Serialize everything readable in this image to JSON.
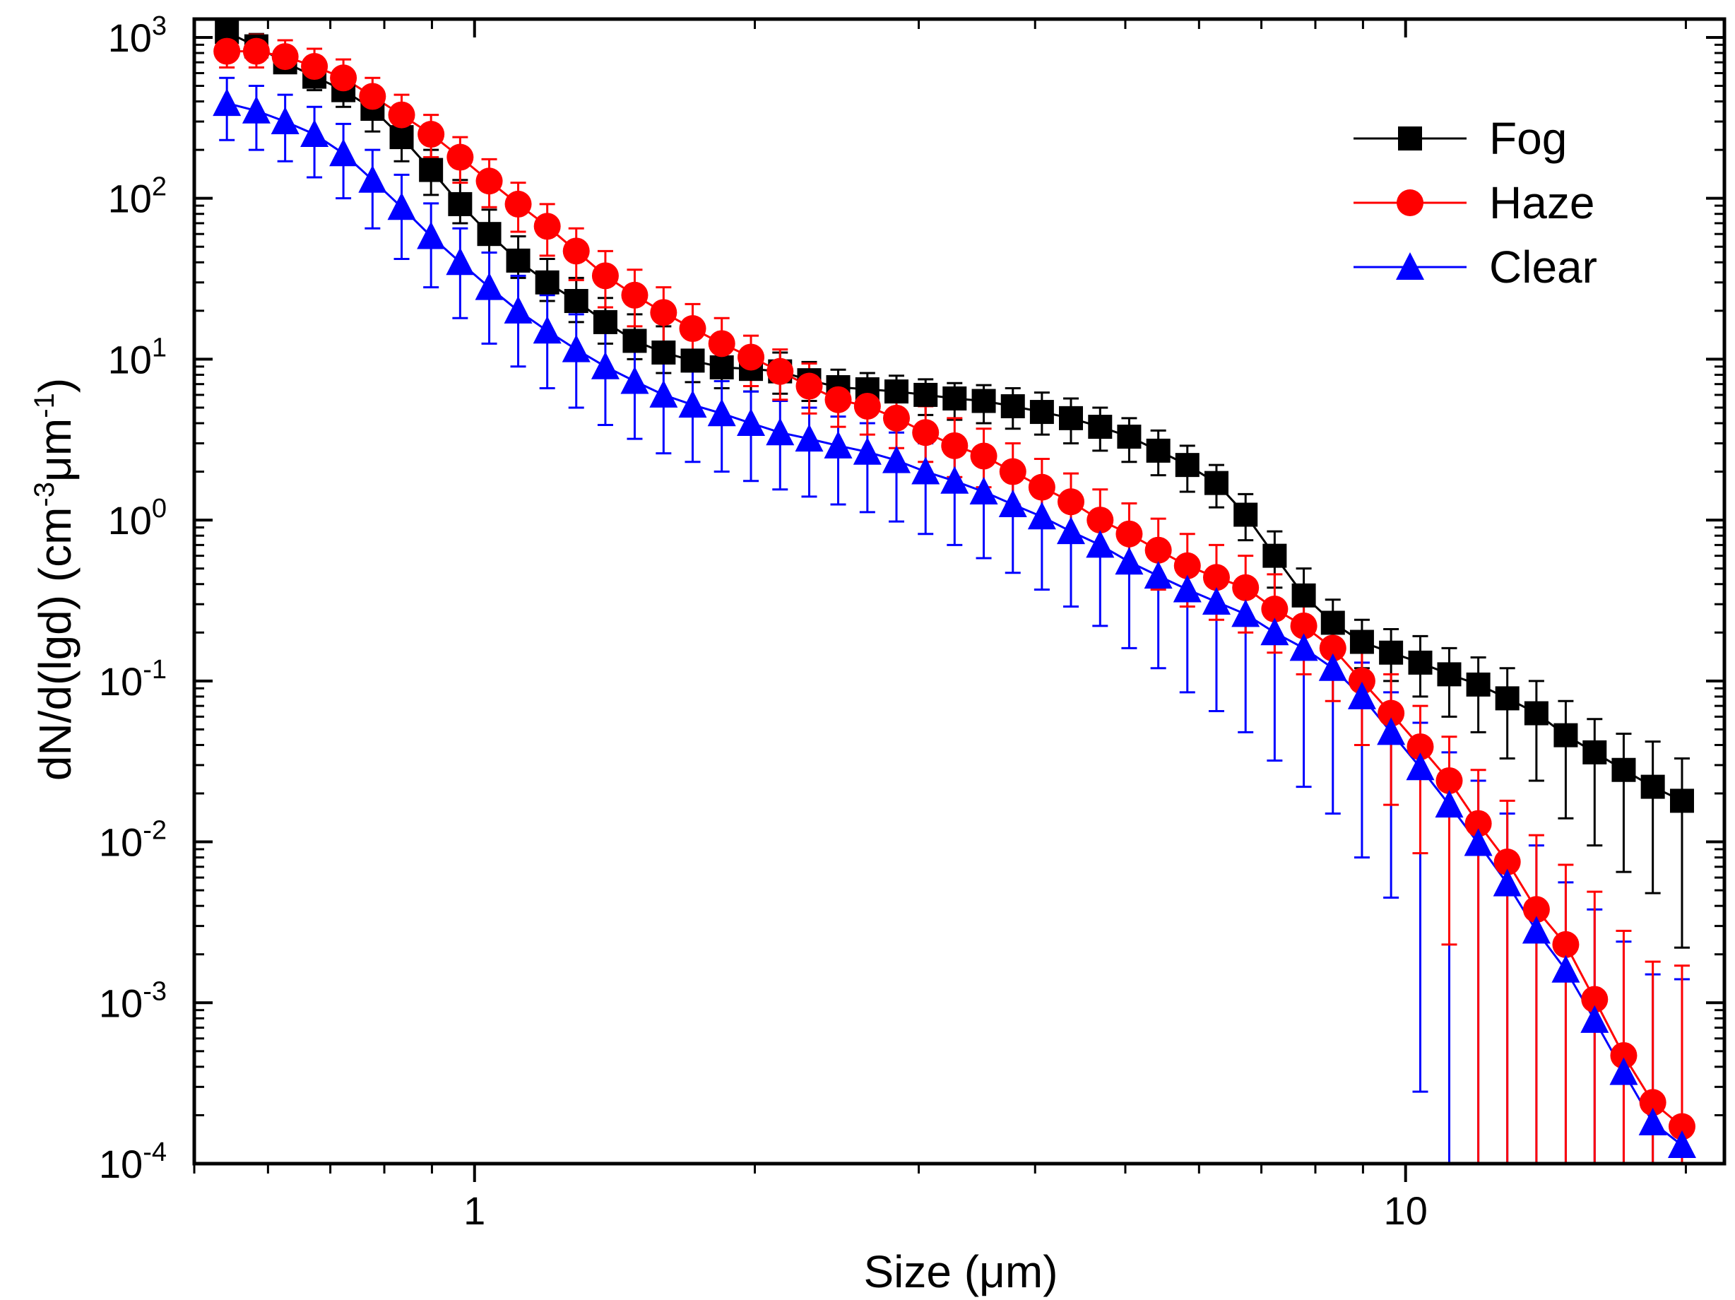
{
  "chart_data": {
    "type": "scatter",
    "title": "",
    "xlabel": "Size (μm)",
    "ylabel": {
      "main": "dN/d(lgd) (cm",
      "sup1": "-3",
      "mid": "μm",
      "sup2": "-1",
      "end": ")"
    },
    "x_scale": "log",
    "y_scale": "log",
    "xlim": [
      0.5,
      22
    ],
    "ylim": [
      0.0001,
      1300
    ],
    "x_tick_labels": [
      {
        "value": 1,
        "label": "1"
      },
      {
        "value": 10,
        "label": "10"
      }
    ],
    "y_tick_labels": [
      {
        "value": 1000,
        "base": "10",
        "exp": "3"
      },
      {
        "value": 100,
        "base": "10",
        "exp": "2"
      },
      {
        "value": 10,
        "base": "10",
        "exp": "1"
      },
      {
        "value": 1,
        "base": "10",
        "exp": "0"
      },
      {
        "value": 0.1,
        "base": "10",
        "exp": "-1"
      },
      {
        "value": 0.01,
        "base": "10",
        "exp": "-2"
      },
      {
        "value": 0.001,
        "base": "10",
        "exp": "-3"
      },
      {
        "value": 0.0001,
        "base": "10",
        "exp": "-4"
      }
    ],
    "legend_position": "top-right",
    "x": [
      0.542,
      0.583,
      0.626,
      0.673,
      0.723,
      0.777,
      0.835,
      0.898,
      0.965,
      1.037,
      1.114,
      1.197,
      1.286,
      1.382,
      1.486,
      1.596,
      1.715,
      1.843,
      1.981,
      2.129,
      2.288,
      2.458,
      2.642,
      2.839,
      3.051,
      3.278,
      3.523,
      3.786,
      4.068,
      4.371,
      4.698,
      5.048,
      5.425,
      5.829,
      6.264,
      6.732,
      7.234,
      7.774,
      8.354,
      8.977,
      9.647,
      10.37,
      11.14,
      11.97,
      12.86,
      13.82,
      14.86,
      15.96,
      17.15,
      18.43,
      19.81
    ],
    "series": [
      {
        "name": "Fog",
        "color": "#000000",
        "marker": "square",
        "values": [
          1080,
          880,
          700,
          570,
          470,
          360,
          240,
          150,
          92,
          60,
          41,
          30,
          23,
          17,
          13,
          11,
          9.8,
          8.9,
          8.7,
          8.4,
          7.4,
          6.7,
          6.5,
          6.3,
          6.0,
          5.7,
          5.5,
          5.1,
          4.7,
          4.3,
          3.8,
          3.3,
          2.7,
          2.2,
          1.7,
          1.08,
          0.6,
          0.34,
          0.23,
          0.175,
          0.15,
          0.13,
          0.11,
          0.095,
          0.078,
          0.063,
          0.046,
          0.036,
          0.028,
          0.022,
          0.018
        ],
        "err_upper": [
          1300,
          1050,
          860,
          710,
          600,
          460,
          330,
          200,
          130,
          85,
          58,
          42,
          32,
          24,
          19,
          16,
          13.5,
          12.2,
          11.8,
          11.0,
          9.6,
          8.6,
          8.2,
          7.9,
          7.5,
          7.1,
          6.9,
          6.6,
          6.2,
          5.7,
          5.0,
          4.3,
          3.6,
          2.9,
          2.2,
          1.45,
          0.85,
          0.5,
          0.32,
          0.24,
          0.21,
          0.19,
          0.16,
          0.14,
          0.12,
          0.1,
          0.075,
          0.058,
          0.047,
          0.042,
          0.033
        ],
        "err_lower": [
          900,
          760,
          600,
          470,
          370,
          260,
          170,
          105,
          70,
          46,
          32,
          23,
          17,
          12.5,
          10,
          8.2,
          7.2,
          6.6,
          6.3,
          6.1,
          5.5,
          5.0,
          4.8,
          4.7,
          4.5,
          4.2,
          4.0,
          3.7,
          3.4,
          3.0,
          2.7,
          2.3,
          1.9,
          1.5,
          1.2,
          0.75,
          0.38,
          0.22,
          0.15,
          0.12,
          0.1,
          0.08,
          0.06,
          0.048,
          0.033,
          0.024,
          0.014,
          0.0095,
          0.0065,
          0.0048,
          0.0022
        ]
      },
      {
        "name": "Haze",
        "color": "#ff0000",
        "marker": "circle",
        "values": [
          820,
          820,
          760,
          660,
          560,
          430,
          330,
          250,
          180,
          128,
          92,
          67,
          47,
          33,
          25,
          19.5,
          15.5,
          12.5,
          10.3,
          8.4,
          6.8,
          5.6,
          5.1,
          4.3,
          3.5,
          2.9,
          2.5,
          2.0,
          1.6,
          1.3,
          1.0,
          0.82,
          0.65,
          0.52,
          0.44,
          0.38,
          0.28,
          0.22,
          0.16,
          0.1,
          0.063,
          0.039,
          0.024,
          0.013,
          0.0075,
          0.0038,
          0.0023,
          0.00105,
          0.00047,
          0.00024,
          0.00017
        ],
        "err_upper": [
          1050,
          1040,
          960,
          850,
          730,
          560,
          440,
          330,
          240,
          175,
          125,
          92,
          65,
          47,
          36,
          28,
          22,
          18,
          14,
          11.5,
          9.4,
          7.8,
          7.2,
          6.2,
          5.1,
          4.3,
          3.7,
          3.0,
          2.4,
          1.95,
          1.55,
          1.27,
          1.02,
          0.82,
          0.7,
          0.6,
          0.46,
          0.36,
          0.26,
          0.17,
          0.11,
          0.07,
          0.045,
          0.028,
          0.018,
          0.011,
          0.0072,
          0.0049,
          0.0028,
          0.0018,
          0.0017
        ],
        "err_lower": [
          650,
          650,
          600,
          510,
          430,
          320,
          240,
          180,
          125,
          88,
          62,
          44,
          31,
          21,
          16,
          12.3,
          9.8,
          8.1,
          6.8,
          5.6,
          4.6,
          3.8,
          3.4,
          2.8,
          2.3,
          1.85,
          1.6,
          1.25,
          0.97,
          0.77,
          0.6,
          0.48,
          0.37,
          0.29,
          0.24,
          0.2,
          0.15,
          0.11,
          0.075,
          0.04,
          0.017,
          0.0085,
          0.0023,
          0.0001,
          0.0001,
          0.0001,
          0.0001,
          0.0001,
          0.0001,
          0.0001,
          0.0001
        ]
      },
      {
        "name": "Clear",
        "color": "#0000ff",
        "marker": "triangle",
        "values": [
          390,
          350,
          300,
          250,
          190,
          130,
          88,
          58,
          40,
          28,
          20,
          15,
          11.5,
          9.0,
          7.3,
          6.0,
          5.2,
          4.6,
          4.0,
          3.5,
          3.2,
          2.9,
          2.65,
          2.35,
          2.0,
          1.75,
          1.5,
          1.25,
          1.05,
          0.85,
          0.7,
          0.55,
          0.45,
          0.37,
          0.31,
          0.26,
          0.2,
          0.16,
          0.12,
          0.08,
          0.048,
          0.029,
          0.017,
          0.0098,
          0.0055,
          0.0028,
          0.0016,
          0.00078,
          0.00037,
          0.00018,
          0.00013
        ],
        "err_upper": [
          560,
          500,
          440,
          370,
          290,
          200,
          140,
          93,
          65,
          46,
          33,
          25,
          19,
          15,
          12,
          9.8,
          8.4,
          7.3,
          6.3,
          5.5,
          5.0,
          4.4,
          4.0,
          3.5,
          3.0,
          2.6,
          2.2,
          1.8,
          1.52,
          1.25,
          1.02,
          0.8,
          0.65,
          0.54,
          0.45,
          0.38,
          0.3,
          0.24,
          0.18,
          0.13,
          0.085,
          0.055,
          0.036,
          0.024,
          0.015,
          0.0095,
          0.0056,
          0.0038,
          0.0024,
          0.0015,
          0.0014
        ],
        "err_lower": [
          230,
          200,
          170,
          135,
          100,
          65,
          42,
          28,
          18,
          12.5,
          9,
          6.6,
          5.0,
          3.9,
          3.2,
          2.6,
          2.3,
          2.0,
          1.75,
          1.55,
          1.4,
          1.25,
          1.12,
          0.98,
          0.82,
          0.7,
          0.58,
          0.47,
          0.37,
          0.29,
          0.22,
          0.16,
          0.12,
          0.085,
          0.065,
          0.048,
          0.032,
          0.022,
          0.015,
          0.008,
          0.0045,
          0.00028,
          0.0001,
          0.0001,
          0.0001,
          0.0001,
          0.0001,
          0.0001,
          0.0001,
          0.0001,
          0.0001
        ]
      }
    ]
  }
}
